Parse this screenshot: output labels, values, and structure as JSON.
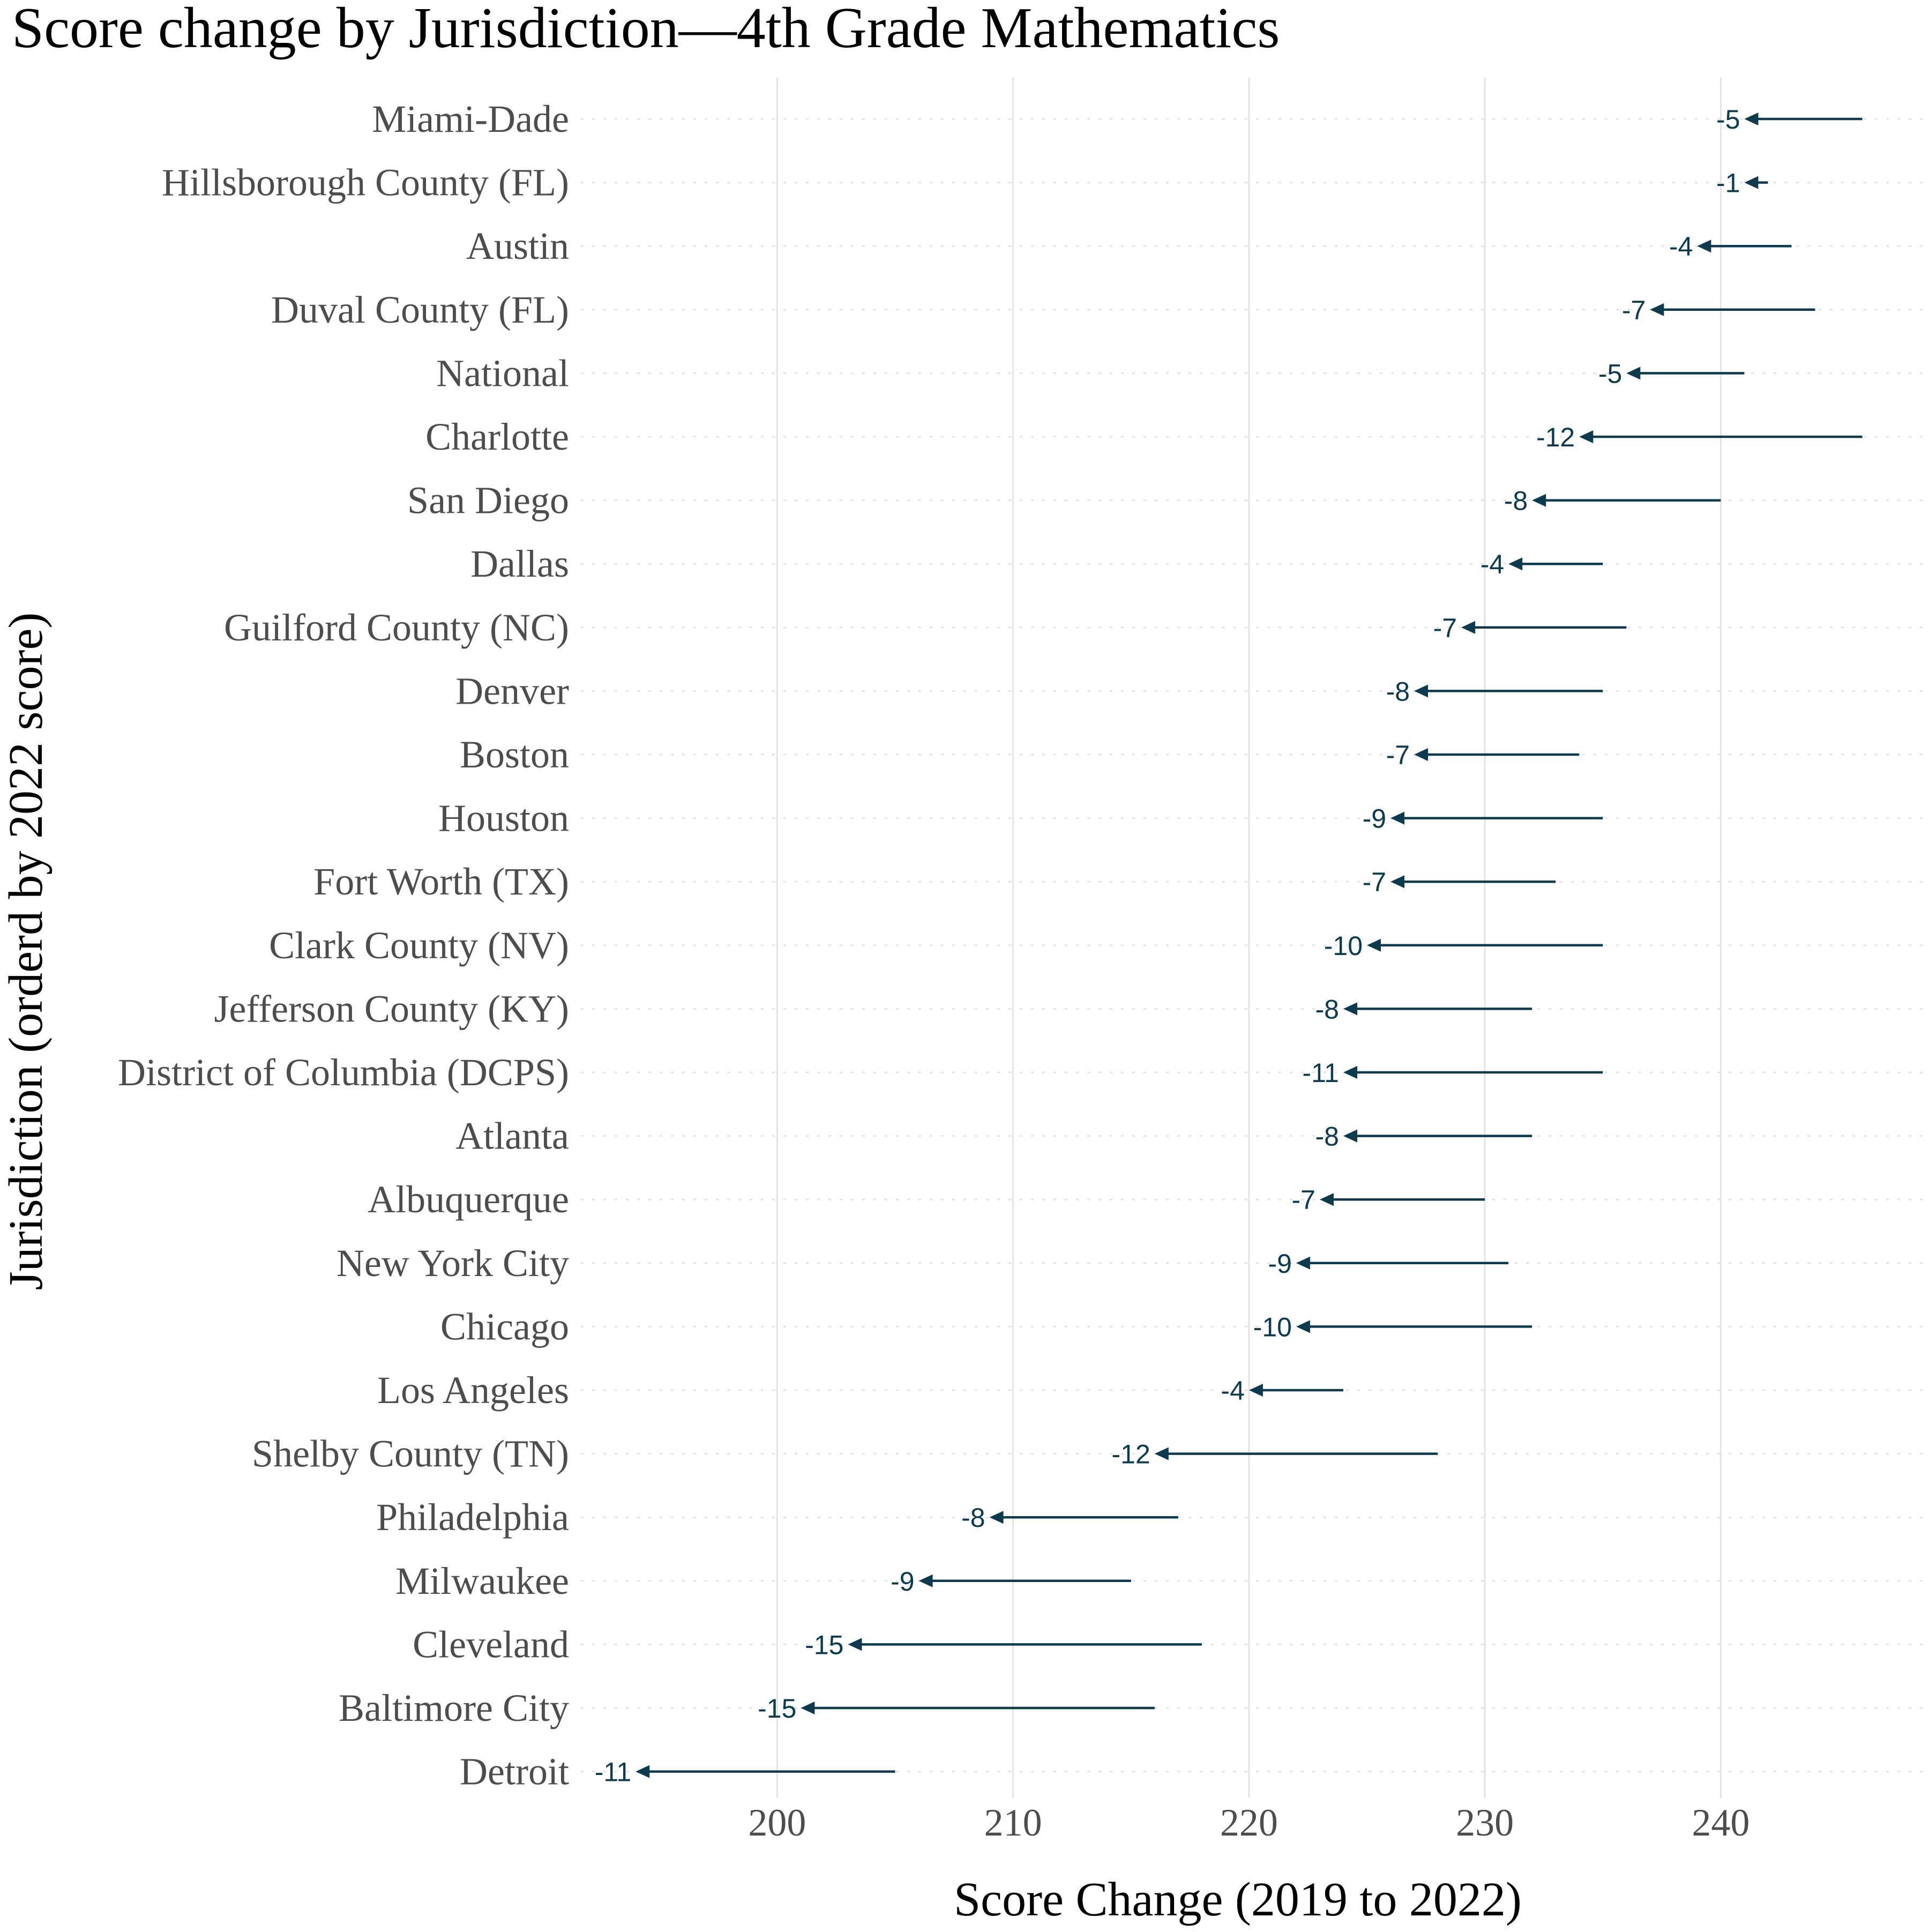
{
  "chart_data": {
    "type": "arrow",
    "title": "Score change by Jurisdiction—4th Grade Mathematics",
    "xlabel": "Score Change (2019 to 2022)",
    "ylabel": "Jurisdiction (orderd by 2022 score)",
    "x_ticks": [
      200,
      210,
      220,
      230,
      240
    ],
    "xlim": [
      191.7,
      248.6
    ],
    "grid": true,
    "series": [
      {
        "jurisdiction": "Miami-Dade",
        "score_2019": 246,
        "score_2022": 241,
        "change": "-5"
      },
      {
        "jurisdiction": "Hillsborough County (FL)",
        "score_2019": 242,
        "score_2022": 241,
        "change": "-1"
      },
      {
        "jurisdiction": "Austin",
        "score_2019": 243,
        "score_2022": 239,
        "change": "-4"
      },
      {
        "jurisdiction": "Duval County (FL)",
        "score_2019": 244,
        "score_2022": 237,
        "change": "-7"
      },
      {
        "jurisdiction": "National",
        "score_2019": 241,
        "score_2022": 236,
        "change": "-5"
      },
      {
        "jurisdiction": "Charlotte",
        "score_2019": 246,
        "score_2022": 234,
        "change": "-12"
      },
      {
        "jurisdiction": "San Diego",
        "score_2019": 240,
        "score_2022": 232,
        "change": "-8"
      },
      {
        "jurisdiction": "Dallas",
        "score_2019": 235,
        "score_2022": 231,
        "change": "-4"
      },
      {
        "jurisdiction": "Guilford County (NC)",
        "score_2019": 236,
        "score_2022": 229,
        "change": "-7"
      },
      {
        "jurisdiction": "Denver",
        "score_2019": 235,
        "score_2022": 227,
        "change": "-8"
      },
      {
        "jurisdiction": "Boston",
        "score_2019": 234,
        "score_2022": 227,
        "change": "-7"
      },
      {
        "jurisdiction": "Houston",
        "score_2019": 235,
        "score_2022": 226,
        "change": "-9"
      },
      {
        "jurisdiction": "Fort Worth (TX)",
        "score_2019": 233,
        "score_2022": 226,
        "change": "-7"
      },
      {
        "jurisdiction": "Clark County (NV)",
        "score_2019": 235,
        "score_2022": 225,
        "change": "-10"
      },
      {
        "jurisdiction": "Jefferson County (KY)",
        "score_2019": 232,
        "score_2022": 224,
        "change": "-8"
      },
      {
        "jurisdiction": "District of Columbia (DCPS)",
        "score_2019": 235,
        "score_2022": 224,
        "change": "-11"
      },
      {
        "jurisdiction": "Atlanta",
        "score_2019": 232,
        "score_2022": 224,
        "change": "-8"
      },
      {
        "jurisdiction": "Albuquerque",
        "score_2019": 230,
        "score_2022": 223,
        "change": "-7"
      },
      {
        "jurisdiction": "New York City",
        "score_2019": 231,
        "score_2022": 222,
        "change": "-9"
      },
      {
        "jurisdiction": "Chicago",
        "score_2019": 232,
        "score_2022": 222,
        "change": "-10"
      },
      {
        "jurisdiction": "Los Angeles",
        "score_2019": 224,
        "score_2022": 220,
        "change": "-4"
      },
      {
        "jurisdiction": "Shelby County (TN)",
        "score_2019": 228,
        "score_2022": 216,
        "change": "-12"
      },
      {
        "jurisdiction": "Philadelphia",
        "score_2019": 217,
        "score_2022": 209,
        "change": "-8"
      },
      {
        "jurisdiction": "Milwaukee",
        "score_2019": 215,
        "score_2022": 206,
        "change": "-9"
      },
      {
        "jurisdiction": "Cleveland",
        "score_2019": 218,
        "score_2022": 203,
        "change": "-15"
      },
      {
        "jurisdiction": "Baltimore City",
        "score_2019": 216,
        "score_2022": 201,
        "change": "-15"
      },
      {
        "jurisdiction": "Detroit",
        "score_2019": 205,
        "score_2022": 194,
        "change": "-11"
      }
    ],
    "colors": {
      "arrow": "#0d3a4d",
      "grid": "#e3e3e3",
      "tick_text": "#4d4d4d"
    }
  }
}
